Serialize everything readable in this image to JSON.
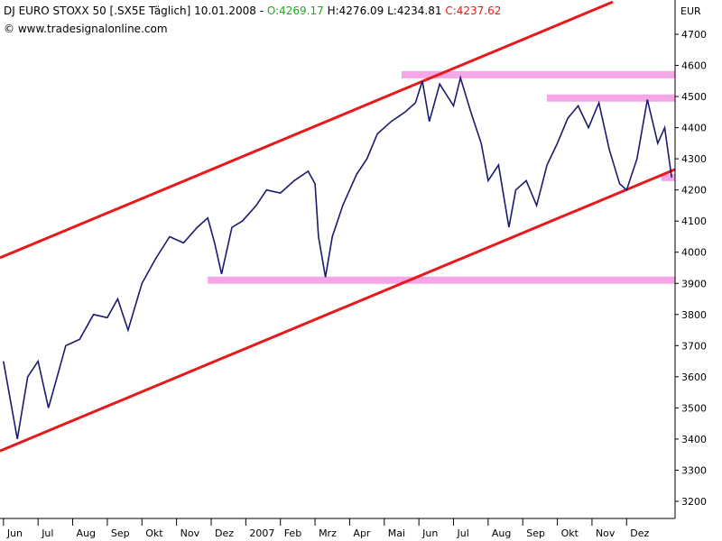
{
  "chart_data": {
    "type": "line",
    "title": "DJ EURO STOXX 50 [.SX5E  Täglich]",
    "date": "10.01.2008 -",
    "open": "O:4269.17",
    "high": "H:4276.09",
    "low": "L:4234.81",
    "close": "C:4237.62",
    "source": "© www.tradesignalonline.com",
    "y_unit": "EUR",
    "xlim": [
      -0.1,
      19.4
    ],
    "xticks": [
      {
        "value": 0,
        "label": "Jun"
      },
      {
        "value": 1,
        "label": "Jul"
      },
      {
        "value": 2,
        "label": "Aug"
      },
      {
        "value": 3,
        "label": "Sep"
      },
      {
        "value": 4,
        "label": "Okt"
      },
      {
        "value": 5,
        "label": "Nov"
      },
      {
        "value": 6,
        "label": "Dez"
      },
      {
        "value": 7,
        "label": "2007"
      },
      {
        "value": 8,
        "label": "Feb"
      },
      {
        "value": 9,
        "label": "Mrz"
      },
      {
        "value": 10,
        "label": "Apr"
      },
      {
        "value": 11,
        "label": "Mai"
      },
      {
        "value": 12,
        "label": "Jun"
      },
      {
        "value": 13,
        "label": "Jul"
      },
      {
        "value": 14,
        "label": "Aug"
      },
      {
        "value": 15,
        "label": "Sep"
      },
      {
        "value": 16,
        "label": "Okt"
      },
      {
        "value": 17,
        "label": "Nov"
      },
      {
        "value": 18,
        "label": "Dez"
      }
    ],
    "ylim": [
      3145,
      4810
    ],
    "yticks": [
      3200,
      3300,
      3400,
      3500,
      3600,
      3700,
      3800,
      3900,
      4000,
      4100,
      4200,
      4300,
      4400,
      4500,
      4600,
      4700
    ],
    "series": [
      {
        "color": "#1a1a6e",
        "x": [
          0.0,
          0.4,
          0.7,
          1.0,
          1.3,
          1.5,
          1.8,
          2.2,
          2.6,
          3.0,
          3.3,
          3.6,
          4.0,
          4.4,
          4.8,
          5.2,
          5.6,
          5.9,
          6.1,
          6.3,
          6.6,
          6.9,
          7.3,
          7.6,
          8.0,
          8.4,
          8.8,
          9.0,
          9.1,
          9.3,
          9.5,
          9.8,
          10.2,
          10.5,
          10.8,
          11.2,
          11.6,
          11.9,
          12.1,
          12.3,
          12.6,
          13.0,
          13.2,
          13.5,
          13.8,
          14.0,
          14.3,
          14.6,
          14.8,
          15.1,
          15.4,
          15.7,
          16.0,
          16.3,
          16.6,
          16.9,
          17.2,
          17.5,
          17.8,
          18.0,
          18.3,
          18.6,
          18.9,
          19.1,
          19.3
        ],
        "values": [
          3650,
          3400,
          3600,
          3650,
          3500,
          3580,
          3700,
          3720,
          3800,
          3790,
          3850,
          3750,
          3900,
          3980,
          4050,
          4030,
          4080,
          4110,
          4030,
          3930,
          4080,
          4100,
          4150,
          4200,
          4190,
          4230,
          4260,
          4220,
          4050,
          3920,
          4050,
          4150,
          4250,
          4300,
          4380,
          4420,
          4450,
          4480,
          4550,
          4420,
          4540,
          4470,
          4560,
          4450,
          4350,
          4230,
          4280,
          4080,
          4200,
          4230,
          4150,
          4280,
          4350,
          4430,
          4470,
          4400,
          4480,
          4330,
          4220,
          4200,
          4300,
          4490,
          4350,
          4400,
          4240
        ]
      }
    ],
    "trend_lines": [
      {
        "color": "#e8191b",
        "x": [
          -0.1,
          17.6
        ],
        "values": [
          3982,
          4804
        ]
      },
      {
        "color": "#e8191b",
        "x": [
          -0.1,
          19.4
        ],
        "values": [
          3362,
          4266
        ]
      }
    ],
    "support_lines": [
      {
        "color": "#f4a6e6",
        "x": [
          5.9,
          19.4
        ],
        "values": [
          3910,
          3910
        ]
      },
      {
        "color": "#f4a6e6",
        "x": [
          11.5,
          19.4
        ],
        "values": [
          4570,
          4570
        ]
      },
      {
        "color": "#f4a6e6",
        "x": [
          15.7,
          19.4
        ],
        "values": [
          4495,
          4495
        ]
      },
      {
        "color": "#f4a6e6",
        "x": [
          19.0,
          19.4
        ],
        "values": [
          4240,
          4240
        ]
      }
    ]
  }
}
